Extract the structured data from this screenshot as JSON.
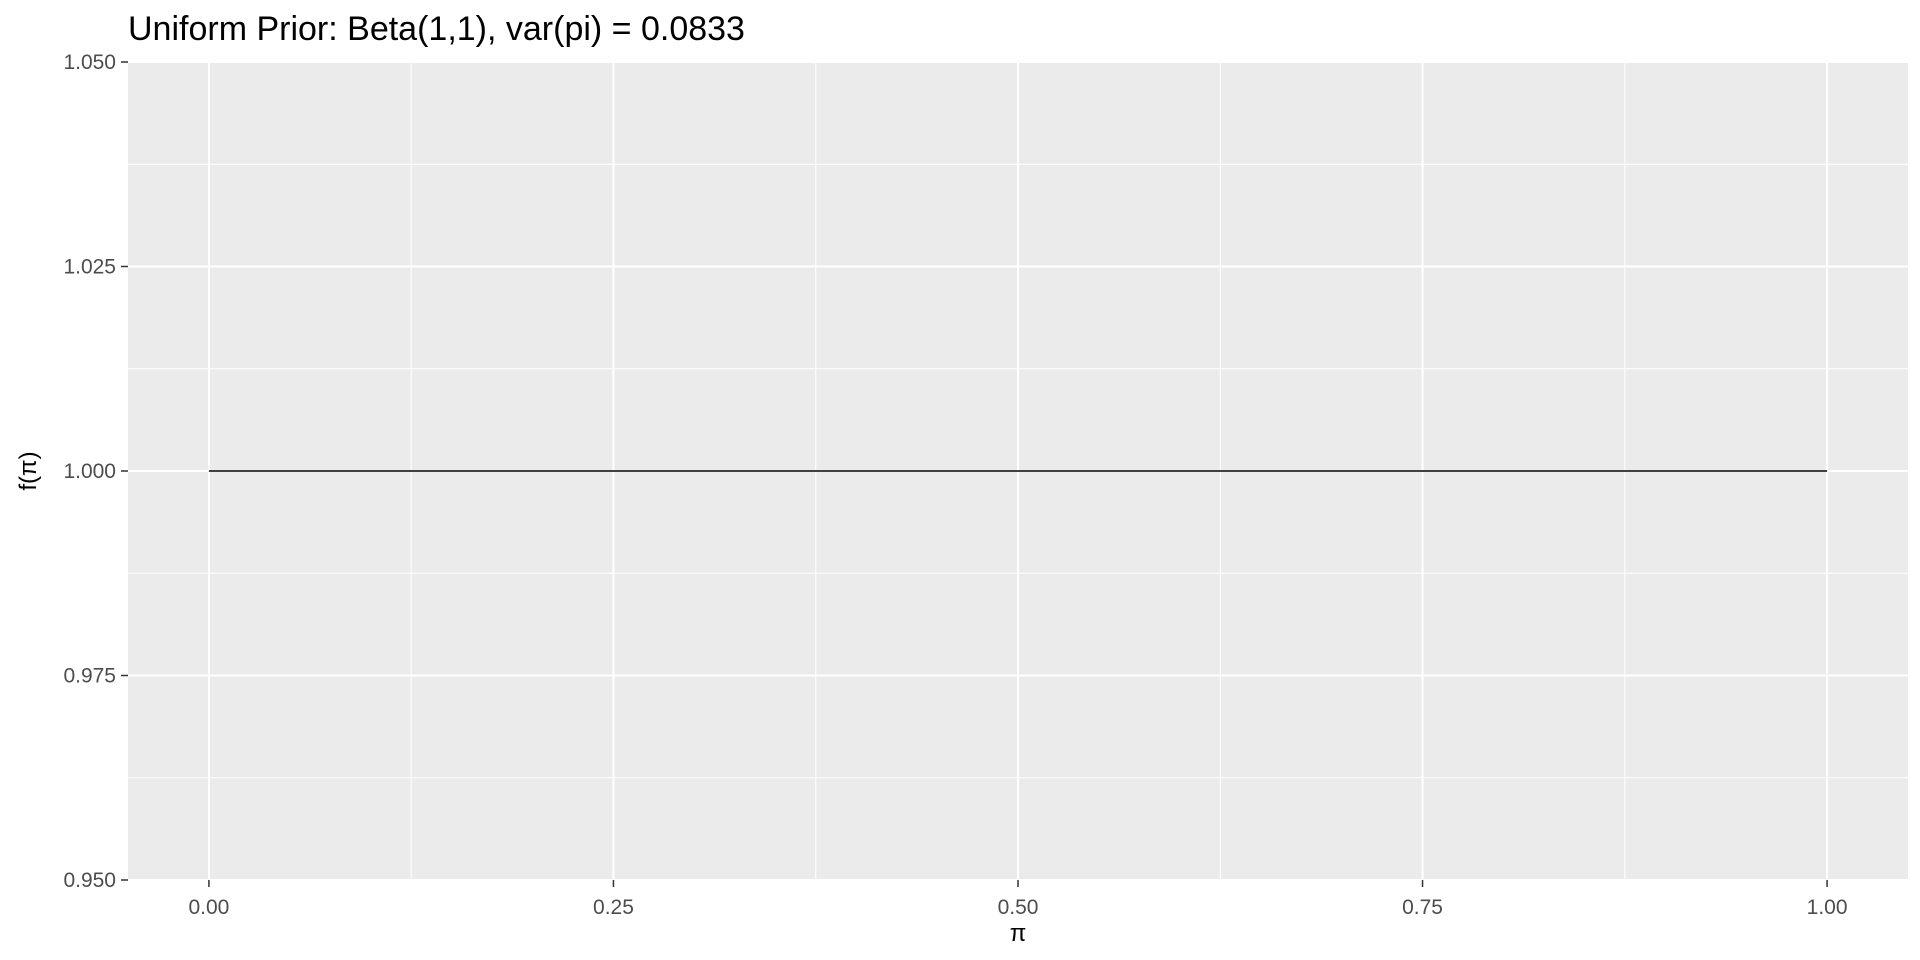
{
  "chart_data": {
    "type": "line",
    "title": "Uniform Prior: Beta(1,1), var(pi) = 0.0833",
    "xlabel": "π",
    "ylabel": "f(π)",
    "x": [
      0.0,
      0.25,
      0.5,
      0.75,
      1.0
    ],
    "series": [
      {
        "values": [
          1.0,
          1.0,
          1.0,
          1.0,
          1.0
        ],
        "color": "#000000"
      }
    ],
    "xlim": [
      -0.05,
      1.05
    ],
    "ylim": [
      0.95,
      1.05
    ],
    "x_ticks": [
      0.0,
      0.25,
      0.5,
      0.75,
      1.0
    ],
    "x_tick_labels": [
      "0.00",
      "0.25",
      "0.50",
      "0.75",
      "1.00"
    ],
    "y_ticks": [
      0.95,
      0.975,
      1.0,
      1.025,
      1.05
    ],
    "y_tick_labels": [
      "0.950",
      "0.975",
      "1.000",
      "1.025",
      "1.050"
    ],
    "x_minor_ticks": [
      0.125,
      0.375,
      0.625,
      0.875
    ],
    "y_minor_ticks": [
      0.9625,
      0.9875,
      1.0125,
      1.0375
    ],
    "grid": true,
    "legend": "none",
    "colors": {
      "panel_background": "#ebebeb",
      "grid_line": "#ffffff",
      "tick_mark": "#333333",
      "tick_text": "#4d4d4d",
      "line": "#000000"
    }
  }
}
